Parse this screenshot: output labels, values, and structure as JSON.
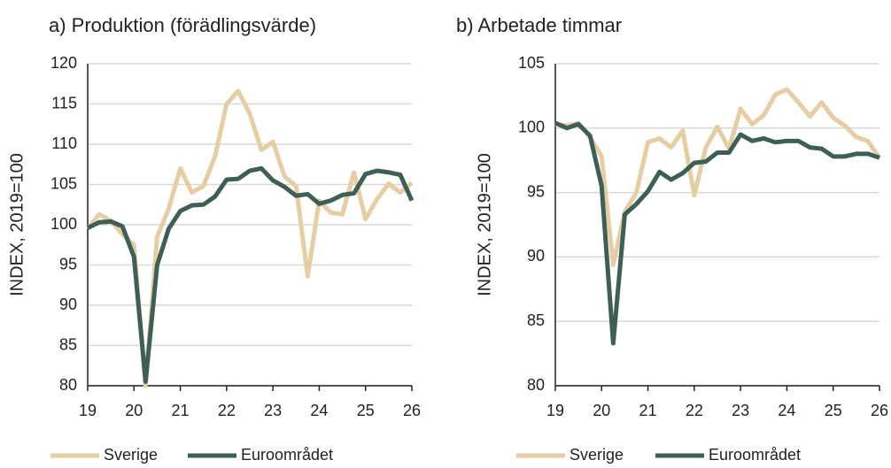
{
  "chart_data": [
    {
      "type": "line",
      "title": "a) Produktion (förädlingsvärde)",
      "ylabel": "INDEX, 2019=100",
      "x": [
        19,
        19.25,
        19.5,
        19.75,
        20,
        20.25,
        20.5,
        20.75,
        21,
        21.25,
        21.5,
        21.75,
        22,
        22.25,
        22.5,
        22.75,
        23,
        23.25,
        23.5,
        23.75,
        24,
        24.25,
        24.5,
        24.75,
        25,
        25.25,
        25.5,
        25.75,
        26
      ],
      "series": [
        {
          "name": "Sverige",
          "color": "#e6cda3",
          "values": [
            99.5,
            101.3,
            100.5,
            98.8,
            97.5,
            80,
            98.5,
            102,
            107,
            104,
            104.8,
            108.5,
            115,
            116.6,
            113.8,
            109.3,
            110.3,
            106,
            104.8,
            93.6,
            103,
            101.5,
            101.3,
            106.5,
            100.7,
            103.2,
            105.1,
            104,
            105.2
          ]
        },
        {
          "name": "Euroområdet",
          "color": "#3d5f55",
          "values": [
            99.6,
            100.3,
            100.4,
            99.8,
            96,
            80.5,
            95,
            99.5,
            101.7,
            102.4,
            102.5,
            103.5,
            105.6,
            105.7,
            106.7,
            107,
            105.5,
            104.7,
            103.6,
            103.8,
            102.6,
            103,
            103.7,
            103.9,
            106.3,
            106.7,
            106.5,
            106.2,
            103
          ]
        }
      ],
      "xlim": [
        19,
        26
      ],
      "xticks": [
        19,
        20,
        21,
        22,
        23,
        24,
        25,
        26
      ],
      "ylim": [
        80,
        120
      ],
      "yticks": [
        80,
        85,
        90,
        95,
        100,
        105,
        110,
        115,
        120
      ],
      "grid": true
    },
    {
      "type": "line",
      "title": "b) Arbetade timmar",
      "ylabel": "INDEX, 2019=100",
      "x": [
        19,
        19.25,
        19.5,
        19.75,
        20,
        20.25,
        20.5,
        20.75,
        21,
        21.25,
        21.5,
        21.75,
        22,
        22.25,
        22.5,
        22.75,
        23,
        23.25,
        23.5,
        23.75,
        24,
        24.25,
        24.5,
        24.75,
        25,
        25.25,
        25.5,
        25.75,
        26
      ],
      "series": [
        {
          "name": "Sverige",
          "color": "#e6cda3",
          "values": [
            100.3,
            100.2,
            100.4,
            99.3,
            97.8,
            89.4,
            93.5,
            95,
            98.9,
            99.2,
            98.5,
            99.8,
            94.8,
            98.5,
            100.1,
            98.4,
            101.5,
            100.3,
            101,
            102.6,
            103,
            102,
            100.9,
            102,
            100.8,
            100.2,
            99.3,
            99,
            97.7
          ]
        },
        {
          "name": "Euroområdet",
          "color": "#3d5f55",
          "values": [
            100.4,
            100,
            100.3,
            99.4,
            95.5,
            83.3,
            93.3,
            94.1,
            95.1,
            96.6,
            96,
            96.5,
            97.3,
            97.4,
            98.1,
            98.1,
            99.5,
            99,
            99.2,
            98.9,
            99,
            99,
            98.5,
            98.4,
            97.8,
            97.8,
            98,
            98,
            97.7
          ]
        }
      ],
      "xlim": [
        19,
        26
      ],
      "xticks": [
        19,
        20,
        21,
        22,
        23,
        24,
        25,
        26
      ],
      "ylim": [
        80,
        105
      ],
      "yticks": [
        80,
        85,
        90,
        95,
        100,
        105
      ],
      "grid": true
    }
  ]
}
